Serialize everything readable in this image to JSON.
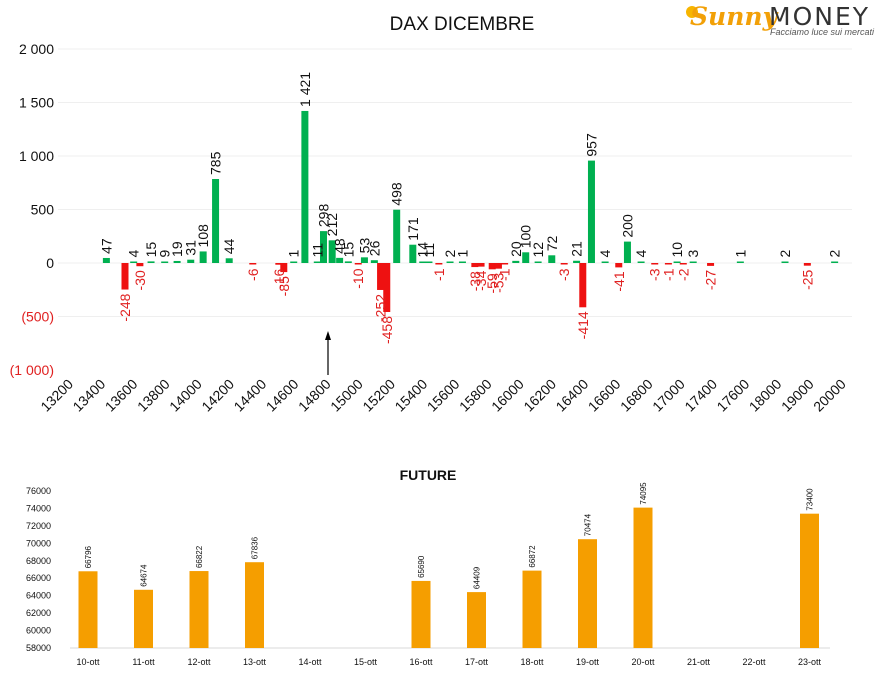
{
  "logo": {
    "brand_part1": "Sunny",
    "brand_part2": "MONEY",
    "tagline": "Facciamo luce sui mercati"
  },
  "colors": {
    "positive": "#00b050",
    "negative": "#ee1111",
    "future_bar": "#f59e00"
  },
  "chart_data": [
    {
      "type": "bar",
      "title": "DAX DICEMBRE",
      "y_ticks": [
        "2 000",
        "1 500",
        "1 000",
        "500",
        "0",
        "(500)",
        "(1 000)"
      ],
      "ylim": [
        -1000,
        2000
      ],
      "categories": [
        "13200",
        "13400",
        "13600",
        "13800",
        "14000",
        "14200",
        "14400",
        "14600",
        "14800",
        "15000",
        "15200",
        "15400",
        "15600",
        "15800",
        "16000",
        "16200",
        "16400",
        "16600",
        "16800",
        "17000",
        "17400",
        "17600",
        "18000",
        "19000",
        "20000"
      ],
      "bars": [
        {
          "slot": 1.95,
          "value": 47,
          "label": "47"
        },
        {
          "slot": 2.7,
          "value": -248,
          "label": "-248"
        },
        {
          "slot": 3.05,
          "value": 4,
          "label": "4"
        },
        {
          "slot": 3.3,
          "value": -30,
          "label": "-30"
        },
        {
          "slot": 3.75,
          "value": 15,
          "label": "15"
        },
        {
          "slot": 4.3,
          "value": 9,
          "label": "9"
        },
        {
          "slot": 4.8,
          "value": 19,
          "label": "19"
        },
        {
          "slot": 5.35,
          "value": 31,
          "label": "31"
        },
        {
          "slot": 5.85,
          "value": 108,
          "label": "108"
        },
        {
          "slot": 6.35,
          "value": 785,
          "label": "785"
        },
        {
          "slot": 6.9,
          "value": 44,
          "label": "44"
        },
        {
          "slot": 7.85,
          "value": -6,
          "label": "-6"
        },
        {
          "slot": 8.9,
          "value": -16,
          "label": "-16"
        },
        {
          "slot": 9.1,
          "value": -85,
          "label": "-85"
        },
        {
          "slot": 9.5,
          "value": 1,
          "label": "1"
        },
        {
          "slot": 9.95,
          "value": 1421,
          "label": "1 421"
        },
        {
          "slot": 10.45,
          "value": 11,
          "label": "11"
        },
        {
          "slot": 10.7,
          "value": 298,
          "label": "298"
        },
        {
          "slot": 11.05,
          "value": 212,
          "label": "212"
        },
        {
          "slot": 11.35,
          "value": 48,
          "label": "48"
        },
        {
          "slot": 11.7,
          "value": 15,
          "label": "15"
        },
        {
          "slot": 12.1,
          "value": -10,
          "label": "-10"
        },
        {
          "slot": 12.35,
          "value": 53,
          "label": "53"
        },
        {
          "slot": 12.75,
          "value": 26,
          "label": "26"
        },
        {
          "slot": 13.0,
          "value": -252,
          "label": "-252"
        },
        {
          "slot": 13.25,
          "value": -458,
          "label": "-458"
        },
        {
          "slot": 13.65,
          "value": 498,
          "label": "498"
        },
        {
          "slot": 14.3,
          "value": 171,
          "label": "171"
        },
        {
          "slot": 14.7,
          "value": 14,
          "label": "14"
        },
        {
          "slot": 14.95,
          "value": 11,
          "label": "11"
        },
        {
          "slot": 15.35,
          "value": -1,
          "label": "-1"
        },
        {
          "slot": 15.8,
          "value": 2,
          "label": "2"
        },
        {
          "slot": 16.3,
          "value": 1,
          "label": "1"
        },
        {
          "slot": 16.8,
          "value": -38,
          "label": "-38"
        },
        {
          "slot": 17.05,
          "value": -34,
          "label": "-34"
        },
        {
          "slot": 17.5,
          "value": -59,
          "label": "-59"
        },
        {
          "slot": 17.75,
          "value": -53,
          "label": "-53"
        },
        {
          "slot": 18.0,
          "value": -1,
          "label": "-1"
        },
        {
          "slot": 18.45,
          "value": 20,
          "label": "20"
        },
        {
          "slot": 18.85,
          "value": 100,
          "label": "100"
        },
        {
          "slot": 19.35,
          "value": 12,
          "label": "12"
        },
        {
          "slot": 19.9,
          "value": 72,
          "label": "72"
        },
        {
          "slot": 20.4,
          "value": -3,
          "label": "-3"
        },
        {
          "slot": 20.9,
          "value": 21,
          "label": "21"
        },
        {
          "slot": 21.15,
          "value": -414,
          "label": "-414"
        },
        {
          "slot": 21.5,
          "value": 957,
          "label": "957"
        },
        {
          "slot": 22.05,
          "value": 4,
          "label": "4"
        },
        {
          "slot": 22.6,
          "value": -41,
          "label": "-41"
        },
        {
          "slot": 22.95,
          "value": 200,
          "label": "200"
        },
        {
          "slot": 23.5,
          "value": 4,
          "label": "4"
        },
        {
          "slot": 24.05,
          "value": -3,
          "label": "-3"
        },
        {
          "slot": 24.6,
          "value": -1,
          "label": "-1"
        },
        {
          "slot": 24.95,
          "value": 10,
          "label": "10"
        },
        {
          "slot": 25.2,
          "value": -2,
          "label": "-2"
        },
        {
          "slot": 25.6,
          "value": 3,
          "label": "3"
        },
        {
          "slot": 26.3,
          "value": -27,
          "label": "-27"
        },
        {
          "slot": 27.5,
          "value": 1,
          "label": "1"
        },
        {
          "slot": 29.3,
          "value": 2,
          "label": "2"
        },
        {
          "slot": 30.2,
          "value": -25,
          "label": "-25"
        },
        {
          "slot": 31.3,
          "value": 2,
          "label": "2"
        }
      ]
    },
    {
      "type": "bar",
      "title": "FUTURE",
      "ylim": [
        58000,
        76000
      ],
      "y_ticks": [
        58000,
        60000,
        62000,
        64000,
        66000,
        68000,
        70000,
        72000,
        74000,
        76000
      ],
      "categories": [
        "10-ott",
        "11-ott",
        "12-ott",
        "13-ott",
        "14-ott",
        "15-ott",
        "16-ott",
        "17-ott",
        "18-ott",
        "19-ott",
        "20-ott",
        "21-ott",
        "22-ott",
        "23-ott"
      ],
      "values": [
        66796,
        64674,
        66822,
        67836,
        null,
        null,
        65690,
        64409,
        66872,
        70474,
        74095,
        null,
        null,
        73400
      ]
    }
  ]
}
